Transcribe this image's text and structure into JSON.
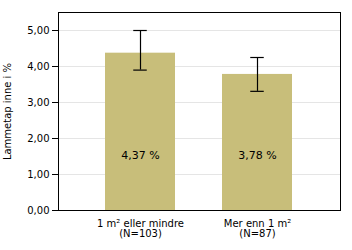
{
  "chart_data": {
    "type": "bar",
    "categories": [
      "1 m² eller mindre\n(N=103)",
      "Mer enn 1 m²\n(N=87)"
    ],
    "values": [
      4.37,
      3.78
    ],
    "value_labels": [
      "4,37 %",
      "3,78 %"
    ],
    "data_labels": true,
    "error_upper": [
      0.63,
      0.47
    ],
    "error_lower": [
      0.47,
      0.47
    ],
    "color": "#c8be7a",
    "ylabel": "Lammetap inne i %",
    "ylim": [
      0,
      5.5
    ],
    "yticks": [
      {
        "value": 0.0,
        "label": "0,00"
      },
      {
        "value": 1.0,
        "label": "1,00"
      },
      {
        "value": 2.0,
        "label": "2,00"
      },
      {
        "value": 3.0,
        "label": "3,00"
      },
      {
        "value": 4.0,
        "label": "4,00"
      },
      {
        "value": 5.0,
        "label": "5,00"
      }
    ],
    "grid": true
  }
}
